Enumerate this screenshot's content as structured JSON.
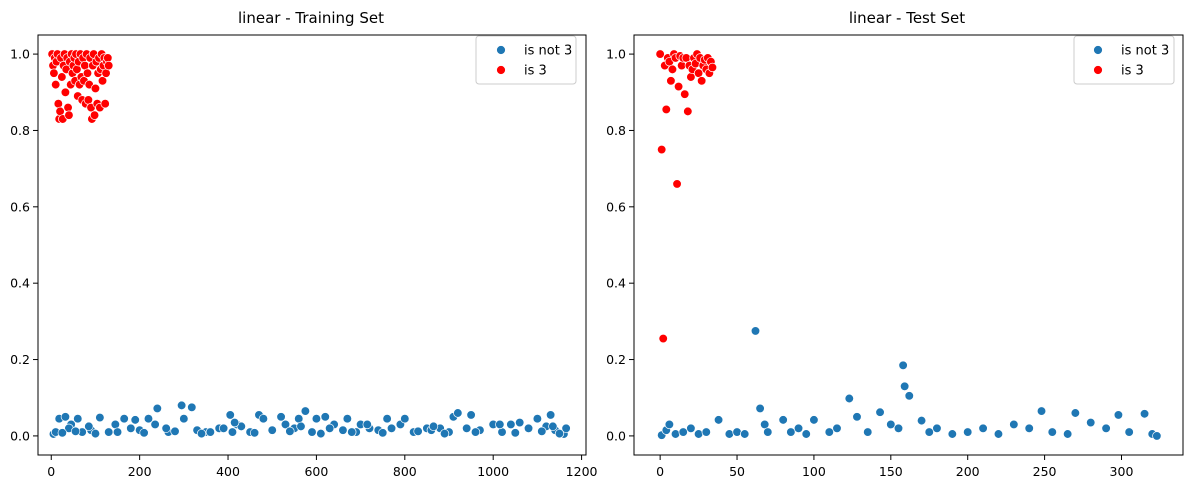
{
  "colors": {
    "not3": "#1f77b4",
    "is3": "#ff0000",
    "axis": "#000000",
    "legend_border": "#cccccc"
  },
  "chart_data": [
    {
      "type": "scatter",
      "title": "linear - Training Set",
      "xlabel": "",
      "ylabel": "",
      "xlim": [
        -30,
        1210
      ],
      "ylim": [
        -0.05,
        1.05
      ],
      "xticks": [
        0,
        200,
        400,
        600,
        800,
        1000,
        1200
      ],
      "yticks": [
        0.0,
        0.2,
        0.4,
        0.6,
        0.8,
        1.0
      ],
      "xtick_labels": [
        "0",
        "200",
        "400",
        "600",
        "800",
        "1000",
        "1200"
      ],
      "ytick_labels": [
        "0.0",
        "0.2",
        "0.4",
        "0.6",
        "0.8",
        "1.0"
      ],
      "grid": false,
      "legend": "top-right",
      "series": [
        {
          "name": "is not 3",
          "color": "#1f77b4",
          "points": [
            [
              5,
              0.005
            ],
            [
              18,
              0.045
            ],
            [
              32,
              0.05
            ],
            [
              45,
              0.03
            ],
            [
              60,
              0.045
            ],
            [
              110,
              0.048
            ],
            [
              145,
              0.03
            ],
            [
              165,
              0.045
            ],
            [
              190,
              0.042
            ],
            [
              220,
              0.045
            ],
            [
              240,
              0.072
            ],
            [
              265,
              0.01
            ],
            [
              295,
              0.08
            ],
            [
              300,
              0.045
            ],
            [
              318,
              0.075
            ],
            [
              350,
              0.01
            ],
            [
              380,
              0.02
            ],
            [
              405,
              0.055
            ],
            [
              420,
              0.03
            ],
            [
              470,
              0.055
            ],
            [
              480,
              0.045
            ],
            [
              520,
              0.05
            ],
            [
              530,
              0.03
            ],
            [
              560,
              0.045
            ],
            [
              575,
              0.065
            ],
            [
              600,
              0.045
            ],
            [
              620,
              0.05
            ],
            [
              640,
              0.03
            ],
            [
              670,
              0.045
            ],
            [
              700,
              0.03
            ],
            [
              760,
              0.045
            ],
            [
              790,
              0.03
            ],
            [
              800,
              0.045
            ],
            [
              850,
              0.02
            ],
            [
              880,
              0.02
            ],
            [
              910,
              0.05
            ],
            [
              920,
              0.06
            ],
            [
              950,
              0.055
            ],
            [
              1000,
              0.03
            ],
            [
              1040,
              0.03
            ],
            [
              1060,
              0.035
            ],
            [
              1100,
              0.045
            ],
            [
              1120,
              0.025
            ],
            [
              1130,
              0.055
            ],
            [
              1160,
              0.005
            ],
            [
              1165,
              0.02
            ],
            [
              10,
              0.01
            ],
            [
              40,
              0.02
            ],
            [
              70,
              0.01
            ],
            [
              90,
              0.015
            ],
            [
              130,
              0.01
            ],
            [
              180,
              0.02
            ],
            [
              200,
              0.015
            ],
            [
              260,
              0.02
            ],
            [
              330,
              0.015
            ],
            [
              360,
              0.01
            ],
            [
              390,
              0.02
            ],
            [
              430,
              0.025
            ],
            [
              450,
              0.01
            ],
            [
              500,
              0.015
            ],
            [
              550,
              0.02
            ],
            [
              590,
              0.01
            ],
            [
              630,
              0.02
            ],
            [
              660,
              0.015
            ],
            [
              690,
              0.01
            ],
            [
              720,
              0.02
            ],
            [
              740,
              0.015
            ],
            [
              770,
              0.02
            ],
            [
              820,
              0.01
            ],
            [
              860,
              0.015
            ],
            [
              900,
              0.01
            ],
            [
              940,
              0.02
            ],
            [
              970,
              0.015
            ],
            [
              1020,
              0.01
            ],
            [
              1080,
              0.02
            ],
            [
              1140,
              0.015
            ],
            [
              25,
              0.008
            ],
            [
              55,
              0.012
            ],
            [
              100,
              0.006
            ],
            [
              150,
              0.01
            ],
            [
              210,
              0.008
            ],
            [
              280,
              0.012
            ],
            [
              340,
              0.006
            ],
            [
              410,
              0.01
            ],
            [
              460,
              0.008
            ],
            [
              540,
              0.012
            ],
            [
              610,
              0.006
            ],
            [
              680,
              0.01
            ],
            [
              750,
              0.008
            ],
            [
              830,
              0.012
            ],
            [
              890,
              0.006
            ],
            [
              960,
              0.01
            ],
            [
              1050,
              0.008
            ],
            [
              1110,
              0.012
            ],
            [
              1150,
              0.006
            ],
            [
              85,
              0.025
            ],
            [
              235,
              0.03
            ],
            [
              415,
              0.035
            ],
            [
              565,
              0.025
            ],
            [
              715,
              0.03
            ],
            [
              865,
              0.025
            ],
            [
              1015,
              0.03
            ],
            [
              1135,
              0.025
            ]
          ]
        },
        {
          "name": "is 3",
          "color": "#ff0000",
          "points": [
            [
              2,
              1.0
            ],
            [
              4,
              0.97
            ],
            [
              6,
              0.95
            ],
            [
              8,
              0.99
            ],
            [
              10,
              0.92
            ],
            [
              12,
              0.98
            ],
            [
              14,
              1.0
            ],
            [
              16,
              0.87
            ],
            [
              18,
              0.83
            ],
            [
              20,
              0.85
            ],
            [
              22,
              0.99
            ],
            [
              24,
              0.94
            ],
            [
              26,
              0.83
            ],
            [
              28,
              0.97
            ],
            [
              30,
              1.0
            ],
            [
              32,
              0.9
            ],
            [
              34,
              0.96
            ],
            [
              36,
              0.99
            ],
            [
              38,
              0.86
            ],
            [
              40,
              0.84
            ],
            [
              42,
              0.98
            ],
            [
              44,
              0.92
            ],
            [
              46,
              1.0
            ],
            [
              48,
              0.95
            ],
            [
              50,
              0.97
            ],
            [
              52,
              0.99
            ],
            [
              54,
              0.93
            ],
            [
              56,
              1.0
            ],
            [
              58,
              0.96
            ],
            [
              60,
              0.89
            ],
            [
              62,
              0.98
            ],
            [
              64,
              0.92
            ],
            [
              66,
              1.0
            ],
            [
              68,
              0.94
            ],
            [
              70,
              0.88
            ],
            [
              72,
              0.99
            ],
            [
              74,
              0.93
            ],
            [
              76,
              0.97
            ],
            [
              78,
              0.87
            ],
            [
              80,
              1.0
            ],
            [
              82,
              0.95
            ],
            [
              84,
              0.88
            ],
            [
              86,
              0.92
            ],
            [
              88,
              0.99
            ],
            [
              90,
              0.86
            ],
            [
              92,
              0.83
            ],
            [
              94,
              0.97
            ],
            [
              96,
              1.0
            ],
            [
              98,
              0.84
            ],
            [
              100,
              0.91
            ],
            [
              102,
              0.98
            ],
            [
              104,
              0.87
            ],
            [
              106,
              0.95
            ],
            [
              108,
              0.99
            ],
            [
              110,
              0.86
            ],
            [
              112,
              0.96
            ],
            [
              114,
              1.0
            ],
            [
              116,
              0.93
            ],
            [
              118,
              0.97
            ],
            [
              120,
              0.99
            ],
            [
              122,
              0.87
            ],
            [
              124,
              0.95
            ],
            [
              126,
              0.98
            ],
            [
              128,
              0.99
            ],
            [
              130,
              0.97
            ]
          ]
        }
      ]
    },
    {
      "type": "scatter",
      "title": "linear - Test Set",
      "xlabel": "",
      "ylabel": "",
      "xlim": [
        -17,
        340
      ],
      "ylim": [
        -0.05,
        1.05
      ],
      "xticks": [
        0,
        50,
        100,
        150,
        200,
        250,
        300
      ],
      "yticks": [
        0.0,
        0.2,
        0.4,
        0.6,
        0.8,
        1.0
      ],
      "xtick_labels": [
        "0",
        "50",
        "100",
        "150",
        "200",
        "250",
        "300"
      ],
      "ytick_labels": [
        "0.0",
        "0.2",
        "0.4",
        "0.6",
        "0.8",
        "1.0"
      ],
      "grid": false,
      "legend": "top-right",
      "series": [
        {
          "name": "is not 3",
          "color": "#1f77b4",
          "points": [
            [
              1,
              0.002
            ],
            [
              4,
              0.015
            ],
            [
              6,
              0.03
            ],
            [
              10,
              0.005
            ],
            [
              15,
              0.01
            ],
            [
              20,
              0.02
            ],
            [
              25,
              0.005
            ],
            [
              30,
              0.01
            ],
            [
              38,
              0.042
            ],
            [
              45,
              0.005
            ],
            [
              50,
              0.01
            ],
            [
              55,
              0.005
            ],
            [
              62,
              0.275
            ],
            [
              65,
              0.072
            ],
            [
              68,
              0.03
            ],
            [
              70,
              0.01
            ],
            [
              80,
              0.042
            ],
            [
              85,
              0.01
            ],
            [
              90,
              0.02
            ],
            [
              95,
              0.005
            ],
            [
              100,
              0.042
            ],
            [
              110,
              0.01
            ],
            [
              115,
              0.02
            ],
            [
              123,
              0.098
            ],
            [
              128,
              0.05
            ],
            [
              135,
              0.01
            ],
            [
              143,
              0.062
            ],
            [
              150,
              0.03
            ],
            [
              155,
              0.02
            ],
            [
              158,
              0.185
            ],
            [
              159,
              0.13
            ],
            [
              162,
              0.105
            ],
            [
              170,
              0.04
            ],
            [
              175,
              0.01
            ],
            [
              180,
              0.02
            ],
            [
              190,
              0.005
            ],
            [
              200,
              0.01
            ],
            [
              210,
              0.02
            ],
            [
              220,
              0.005
            ],
            [
              230,
              0.03
            ],
            [
              240,
              0.02
            ],
            [
              248,
              0.065
            ],
            [
              255,
              0.01
            ],
            [
              265,
              0.005
            ],
            [
              270,
              0.06
            ],
            [
              280,
              0.035
            ],
            [
              290,
              0.02
            ],
            [
              298,
              0.055
            ],
            [
              305,
              0.01
            ],
            [
              315,
              0.058
            ],
            [
              320,
              0.005
            ],
            [
              323,
              0.0
            ]
          ]
        },
        {
          "name": "is 3",
          "color": "#ff0000",
          "points": [
            [
              0,
              1.0
            ],
            [
              1,
              0.75
            ],
            [
              2,
              0.255
            ],
            [
              3,
              0.97
            ],
            [
              4,
              0.855
            ],
            [
              5,
              0.99
            ],
            [
              6,
              0.98
            ],
            [
              7,
              0.93
            ],
            [
              8,
              0.96
            ],
            [
              9,
              1.0
            ],
            [
              10,
              0.99
            ],
            [
              11,
              0.66
            ],
            [
              12,
              0.915
            ],
            [
              13,
              0.995
            ],
            [
              14,
              0.97
            ],
            [
              15,
              0.99
            ],
            [
              16,
              0.895
            ],
            [
              17,
              0.99
            ],
            [
              18,
              0.85
            ],
            [
              19,
              0.97
            ],
            [
              20,
              0.94
            ],
            [
              21,
              0.96
            ],
            [
              22,
              0.99
            ],
            [
              23,
              0.975
            ],
            [
              24,
              1.0
            ],
            [
              25,
              0.95
            ],
            [
              26,
              0.99
            ],
            [
              27,
              0.93
            ],
            [
              28,
              0.97
            ],
            [
              29,
              0.985
            ],
            [
              30,
              0.96
            ],
            [
              31,
              0.99
            ],
            [
              32,
              0.95
            ],
            [
              33,
              0.98
            ],
            [
              34,
              0.965
            ]
          ]
        }
      ]
    }
  ]
}
